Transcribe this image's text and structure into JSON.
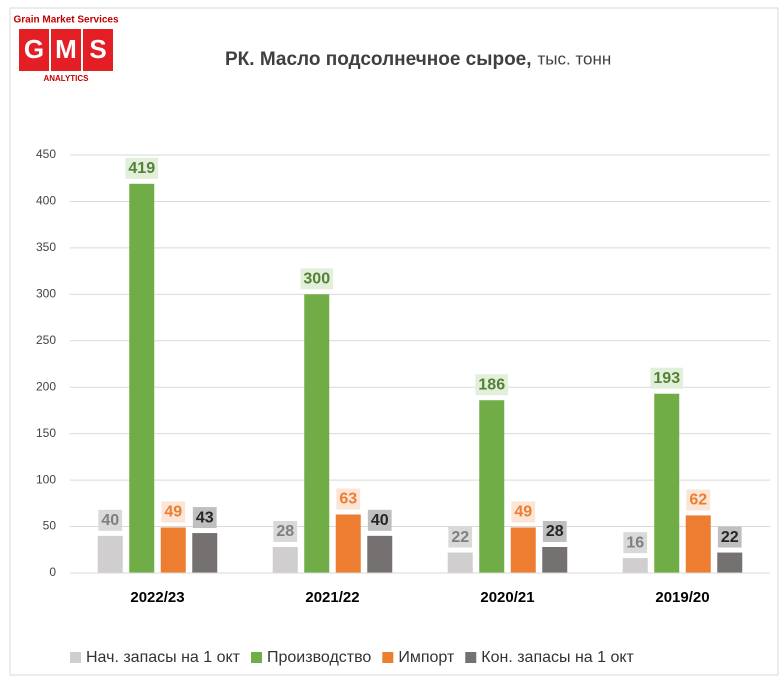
{
  "logo": {
    "top": "Grain Market Services",
    "letters": [
      "G",
      "M",
      "S"
    ],
    "bottom": "ANALYTICS"
  },
  "chart_data": {
    "type": "bar",
    "title": "РК. Масло подсолнечное сырое,",
    "unit": "тыс. тонн",
    "categories": [
      "2022/23",
      "2021/22",
      "2020/21",
      "2019/20"
    ],
    "series": [
      {
        "name": "Нач. запасы на 1 окт",
        "color": "#d0cece",
        "values": [
          40,
          28,
          22,
          16
        ]
      },
      {
        "name": "Производство",
        "color": "#70ad47",
        "values": [
          419,
          300,
          186,
          193
        ]
      },
      {
        "name": "Импорт",
        "color": "#ed7d31",
        "values": [
          49,
          63,
          49,
          62
        ]
      },
      {
        "name": "Кон. запасы на 1 окт",
        "color": "#767171",
        "values": [
          43,
          40,
          28,
          22
        ]
      }
    ],
    "ylim": [
      0,
      450
    ],
    "yticks": [
      0,
      50,
      100,
      150,
      200,
      250,
      300,
      350,
      400,
      450
    ],
    "grid": true,
    "legend": "bottom"
  }
}
